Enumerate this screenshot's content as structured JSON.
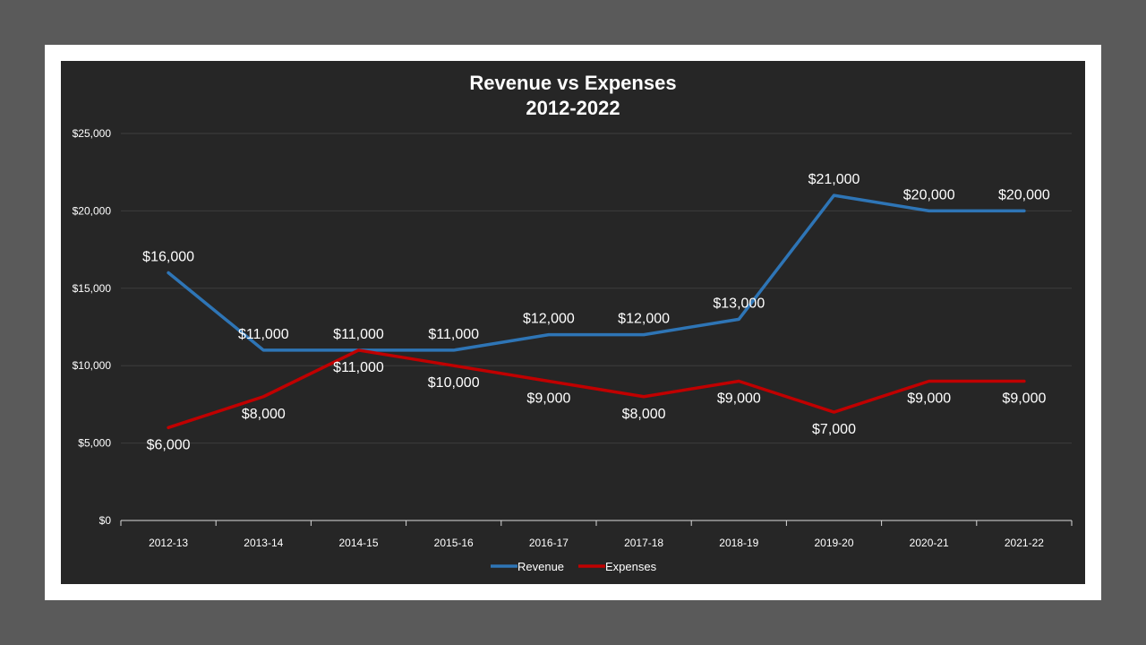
{
  "chart_data": {
    "type": "line",
    "title": "Revenue vs Expenses",
    "subtitle": "2012-2022",
    "categories": [
      "2012-13",
      "2013-14",
      "2014-15",
      "2015-16",
      "2016-17",
      "2017-18",
      "2018-19",
      "2019-20",
      "2020-21",
      "2021-22"
    ],
    "y_ticks": [
      "$0",
      "$5,000",
      "$10,000",
      "$15,000",
      "$20,000",
      "$25,000"
    ],
    "ylim": [
      0,
      25000
    ],
    "grid": true,
    "legend": "bottom",
    "series": [
      {
        "name": "Revenue",
        "color": "#2e75b6",
        "values": [
          16000,
          11000,
          11000,
          11000,
          12000,
          12000,
          13000,
          21000,
          20000,
          20000
        ],
        "labels": [
          "$16,000",
          "$11,000",
          "$11,000",
          "$11,000",
          "$12,000",
          "$12,000",
          "$13,000",
          "$21,000",
          "$20,000",
          "$20,000"
        ]
      },
      {
        "name": "Expenses",
        "color": "#c00000",
        "values": [
          6000,
          8000,
          11000,
          10000,
          9000,
          8000,
          9000,
          7000,
          9000,
          9000
        ],
        "labels": [
          "$6,000",
          "$8,000",
          "$11,000",
          "$10,000",
          "$9,000",
          "$8,000",
          "$9,000",
          "$7,000",
          "$9,000",
          "$9,000"
        ]
      }
    ]
  }
}
